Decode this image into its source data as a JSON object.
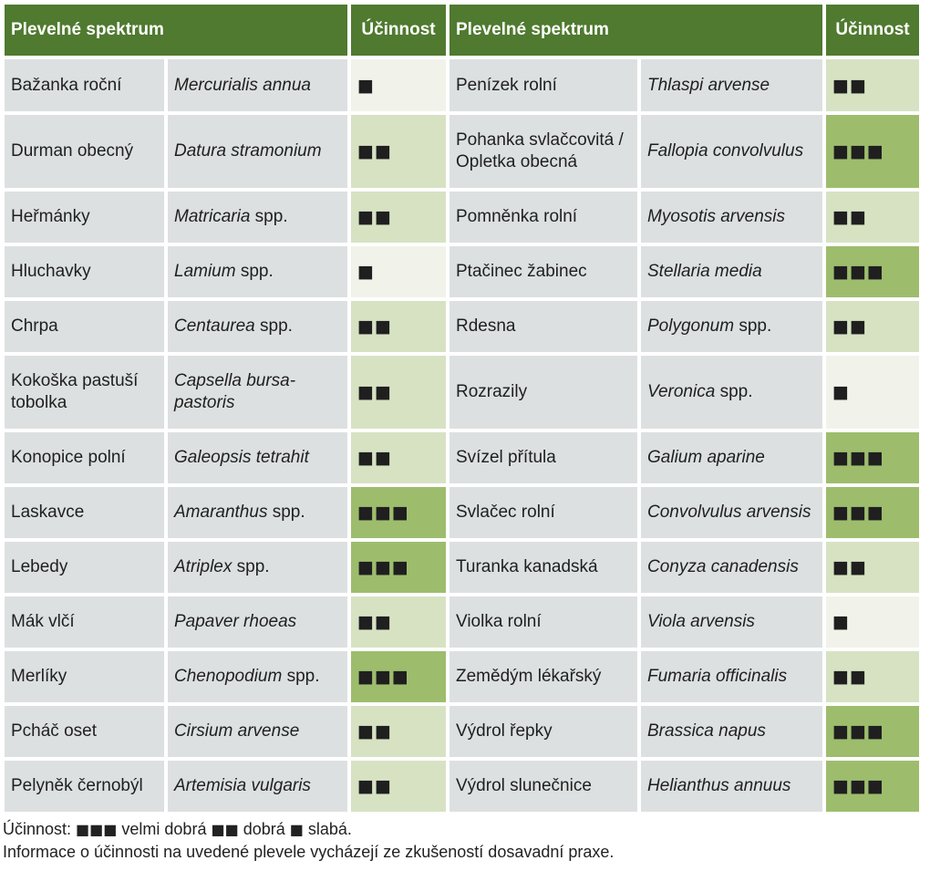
{
  "header": {
    "spectrum_left": "Plevelné spektrum",
    "efficacy_left": "Účinnost",
    "spectrum_right": "Plevelné spektrum",
    "efficacy_right": "Účinnost"
  },
  "rows": [
    {
      "h": 57,
      "left": {
        "cz": "Bažanka roční",
        "lat": "Mercurialis annua",
        "latRest": "",
        "eff": "■",
        "level": 1
      },
      "right": {
        "cz": "Penízek rolní",
        "lat": "Thlaspi arvense",
        "latRest": "",
        "eff": "■■",
        "level": 2
      }
    },
    {
      "h": 80,
      "left": {
        "cz": "Durman obecný",
        "lat": "Datura stramonium",
        "latRest": "",
        "eff": "■■",
        "level": 2
      },
      "right": {
        "cz": "Pohanka svlačcovitá / Opletka obecná",
        "lat": "Fallopia convolvulus",
        "latRest": "",
        "eff": "■■■",
        "level": 3
      }
    },
    {
      "h": 56,
      "left": {
        "cz": "Heřmánky",
        "lat": "Matricaria",
        "latRest": " spp.",
        "eff": "■■",
        "level": 2
      },
      "right": {
        "cz": "Pomněnka rolní",
        "lat": "Myosotis arvensis",
        "latRest": "",
        "eff": "■■",
        "level": 2
      }
    },
    {
      "h": 56,
      "left": {
        "cz": "Hluchavky",
        "lat": "Lamium",
        "latRest": " spp.",
        "eff": "■",
        "level": 1
      },
      "right": {
        "cz": "Ptačinec žabinec",
        "lat": "Stellaria media",
        "latRest": "",
        "eff": "■■■",
        "level": 3
      }
    },
    {
      "h": 56,
      "left": {
        "cz": "Chrpa",
        "lat": "Centaurea",
        "latRest": " spp.",
        "eff": "■■",
        "level": 2
      },
      "right": {
        "cz": "Rdesna",
        "lat": "Polygonum",
        "latRest": " spp.",
        "eff": "■■",
        "level": 2
      }
    },
    {
      "h": 80,
      "left": {
        "cz": "Kokoška pastuší tobolka",
        "lat": "Capsella bursa-pastoris",
        "latRest": "",
        "eff": "■■",
        "level": 2
      },
      "right": {
        "cz": "Rozrazily",
        "lat": "Veronica",
        "latRest": " spp.",
        "eff": "■",
        "level": 1
      }
    },
    {
      "h": 56,
      "left": {
        "cz": "Konopice polní",
        "lat": "Galeopsis tetrahit",
        "latRest": "",
        "eff": "■■",
        "level": 2
      },
      "right": {
        "cz": "Svízel přítula",
        "lat": "Galium aparine",
        "latRest": "",
        "eff": "■■■",
        "level": 3
      }
    },
    {
      "h": 56,
      "left": {
        "cz": "Laskavce",
        "lat": "Amaranthus",
        "latRest": " spp.",
        "eff": "■■■",
        "level": 3
      },
      "right": {
        "cz": "Svlačec rolní",
        "lat": "Convolvulus arvensis",
        "latRest": "",
        "eff": "■■■",
        "level": 3
      }
    },
    {
      "h": 56,
      "left": {
        "cz": "Lebedy",
        "lat": "Atriplex",
        "latRest": " spp.",
        "eff": "■■■",
        "level": 3
      },
      "right": {
        "cz": "Turanka kanadská",
        "lat": "Conyza canadensis",
        "latRest": "",
        "eff": "■■",
        "level": 2
      }
    },
    {
      "h": 56,
      "left": {
        "cz": "Mák vlčí",
        "lat": "Papaver rhoeas",
        "latRest": "",
        "eff": "■■",
        "level": 2
      },
      "right": {
        "cz": "Violka rolní",
        "lat": "Viola arvensis",
        "latRest": "",
        "eff": "■",
        "level": 1
      }
    },
    {
      "h": 56,
      "left": {
        "cz": "Merlíky",
        "lat": "Chenopodium",
        "latRest": " spp.",
        "eff": "■■■",
        "level": 3
      },
      "right": {
        "cz": "Zemědým lékařský",
        "lat": "Fumaria officinalis",
        "latRest": "",
        "eff": "■■",
        "level": 2
      }
    },
    {
      "h": 56,
      "left": {
        "cz": "Pcháč oset",
        "lat": "Cirsium arvense",
        "latRest": "",
        "eff": "■■",
        "level": 2
      },
      "right": {
        "cz": "Výdrol řepky",
        "lat": "Brassica napus",
        "latRest": "",
        "eff": "■■■",
        "level": 3
      }
    },
    {
      "h": 56,
      "left": {
        "cz": "Pelyněk černobýl",
        "lat": "Artemisia vulgaris",
        "latRest": "",
        "eff": "■■",
        "level": 2
      },
      "right": {
        "cz": "Výdrol slunečnice",
        "lat": "Helianthus annuus",
        "latRest": "",
        "eff": "■■■",
        "level": 3
      }
    }
  ],
  "legend": {
    "prefix": "Účinnost: ",
    "sq3": "■■■",
    "label3": " velmi dobrá ",
    "sq2": "■■",
    "label2": " dobrá ",
    "sq1": "■",
    "label1": " slabá."
  },
  "note": "Informace o účinnosti na uvedené plevele vycházejí ze zkušeností dosavadní praxe."
}
